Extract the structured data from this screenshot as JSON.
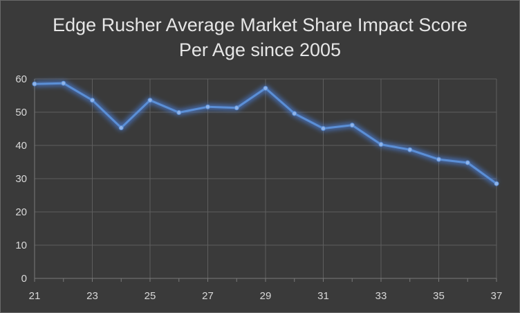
{
  "chart_data": {
    "type": "line",
    "title_lines": [
      "Edge Rusher Average Market Share Impact Score",
      "Per Age since 2005"
    ],
    "xlabel": "",
    "ylabel": "",
    "x": [
      21,
      22,
      23,
      24,
      25,
      26,
      27,
      28,
      29,
      30,
      31,
      32,
      33,
      34,
      35,
      36,
      37
    ],
    "series": [
      {
        "values": [
          58.5,
          58.7,
          53.6,
          45.3,
          53.6,
          49.9,
          51.6,
          51.3,
          57.2,
          49.6,
          45.1,
          46.1,
          40.3,
          38.7,
          35.8,
          34.8,
          28.5
        ]
      }
    ],
    "ylim": [
      0,
      60
    ],
    "xlim": [
      21,
      37
    ],
    "y_ticks": [
      0,
      10,
      20,
      30,
      40,
      50,
      60
    ],
    "x_ticks": [
      21,
      23,
      25,
      27,
      29,
      31,
      33,
      35,
      37
    ],
    "grid": true,
    "legend": "none",
    "colors": {
      "background": "#3a3a3a",
      "line": "#5b8fd6",
      "glow": "#4a7fd8",
      "grid": "#5e5e5e",
      "text": "#d9d9d9"
    }
  }
}
